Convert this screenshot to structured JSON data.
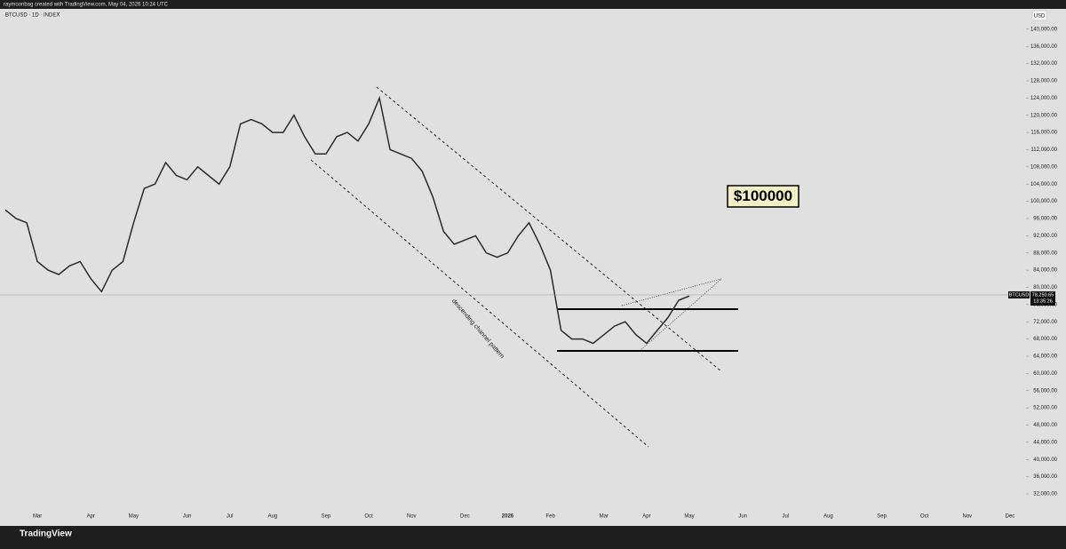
{
  "header": "raymoonbag created with TradingView.com, May 04, 2026 10:24 UTC",
  "footer": "TradingView",
  "chart_data": {
    "type": "line",
    "symbol_label": "BTCUSD · 1D · INDEX",
    "currency": "USD",
    "annotations": [
      "$100000",
      "descending channel pattern"
    ],
    "last_price": {
      "symbol": "BTCUSD",
      "value": 78250.65,
      "label": "78,250.65",
      "countdown": "13:35:26"
    },
    "categories": [
      null,
      null,
      null,
      "Mar",
      null,
      null,
      null,
      null,
      "Apr",
      null,
      null,
      null,
      "May",
      null,
      null,
      null,
      null,
      "Jun",
      null,
      null,
      null,
      "Jul",
      null,
      null,
      null,
      "Aug",
      null,
      null,
      null,
      null,
      "Sep",
      null,
      null,
      null,
      "Oct",
      null,
      null,
      null,
      "Nov",
      null,
      null,
      null,
      null,
      "Dec",
      null,
      null,
      null,
      "2026",
      null,
      null,
      null,
      "Feb",
      null,
      null,
      null,
      null,
      "Mar",
      null,
      null,
      null,
      "Apr",
      null,
      null,
      null,
      "May",
      null,
      null,
      null,
      null,
      "Jun",
      null,
      null,
      null,
      "Jul",
      null,
      null,
      null,
      "Aug",
      null,
      null,
      null,
      null,
      "Sep",
      null,
      null,
      null,
      "Oct",
      null,
      null,
      null,
      "Nov",
      null,
      null,
      null,
      "Dec",
      null
    ],
    "series": [
      {
        "name": "BTCUSD",
        "color": "#2b2b2b",
        "values": [
          98000,
          96000,
          95000,
          86000,
          84000,
          83000,
          85000,
          86000,
          82000,
          79000,
          84000,
          86000,
          95000,
          103000,
          104000,
          109000,
          106000,
          105000,
          108000,
          106000,
          104000,
          108000,
          118000,
          119000,
          118000,
          116000,
          116000,
          120000,
          115000,
          111000,
          111000,
          115000,
          116000,
          114000,
          118000,
          124000,
          112000,
          111000,
          110000,
          107000,
          101000,
          93000,
          90000,
          91000,
          92000,
          88000,
          87000,
          88000,
          92000,
          95000,
          90000,
          84000,
          70000,
          68000,
          68000,
          67000,
          69000,
          71000,
          72000,
          69000,
          67000,
          70000,
          73000,
          77000,
          78000,
          null,
          null,
          null,
          null,
          null,
          null,
          null,
          null,
          null,
          null,
          null,
          null,
          null,
          null,
          null,
          null,
          null,
          null,
          null,
          null,
          null,
          null,
          null,
          null,
          null,
          null,
          null,
          null,
          null,
          null,
          null
        ]
      }
    ],
    "ylim": [
      28700,
      144300
    ],
    "yticks": [
      {
        "value": 32000,
        "label": "32,000.00"
      },
      {
        "value": 36000,
        "label": "36,000.00"
      },
      {
        "value": 40000,
        "label": "40,000.00"
      },
      {
        "value": 44000,
        "label": "44,000.00"
      },
      {
        "value": 48000,
        "label": "48,000.00"
      },
      {
        "value": 52000,
        "label": "52,000.00"
      },
      {
        "value": 56000,
        "label": "56,000.00"
      },
      {
        "value": 60000,
        "label": "60,000.00"
      },
      {
        "value": 64000,
        "label": "64,000.00"
      },
      {
        "value": 68000,
        "label": "68,000.00"
      },
      {
        "value": 72000,
        "label": "72,000.00"
      },
      {
        "value": 76000,
        "label": "76,000.00"
      },
      {
        "value": 80000,
        "label": "80,000.00"
      },
      {
        "value": 84000,
        "label": "84,000.00"
      },
      {
        "value": 88000,
        "label": "88,000.00"
      },
      {
        "value": 92000,
        "label": "92,000.00"
      },
      {
        "value": 96000,
        "label": "96,000.00"
      },
      {
        "value": 100000,
        "label": "100,000.00"
      },
      {
        "value": 104000,
        "label": "104,000.00"
      },
      {
        "value": 108000,
        "label": "108,000.00"
      },
      {
        "value": 112000,
        "label": "112,000.00"
      },
      {
        "value": 116000,
        "label": "116,000.00"
      },
      {
        "value": 120000,
        "label": "120,000.00"
      },
      {
        "value": 124000,
        "label": "124,000.00"
      },
      {
        "value": 128000,
        "label": "128,000.00"
      },
      {
        "value": 132000,
        "label": "132,000.00"
      },
      {
        "value": 136000,
        "label": "136,000.00"
      },
      {
        "value": 140000,
        "label": "140,000.00"
      }
    ],
    "grid": false
  }
}
